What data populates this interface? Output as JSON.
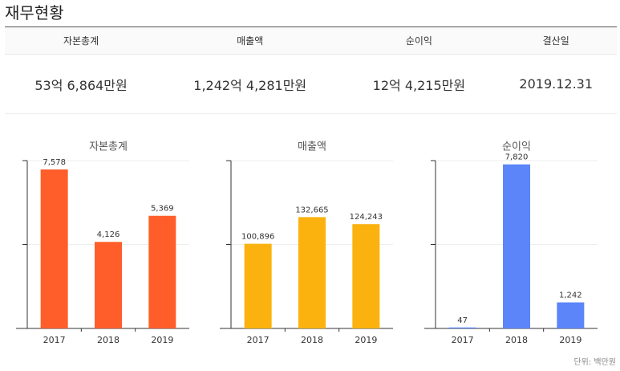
{
  "header": {
    "title": "재무현황"
  },
  "table": {
    "headers": [
      "자본총계",
      "매출액",
      "순이익",
      "결산일"
    ],
    "rows": [
      [
        "53억 6,864만원",
        "1,242억 4,281만원",
        "12억 4,215만원",
        "2019.12.31"
      ]
    ]
  },
  "chart_data": [
    {
      "type": "bar",
      "title": "자본총계",
      "categories": [
        "2017",
        "2018",
        "2019"
      ],
      "values": [
        7578,
        4126,
        5369
      ],
      "value_labels": [
        "7,578",
        "4,126",
        "5,369"
      ],
      "color": "#ff5e2b",
      "ylim": [
        0,
        8000
      ],
      "yticks": [
        0,
        4000,
        8000
      ],
      "grid": true
    },
    {
      "type": "bar",
      "title": "매출액",
      "categories": [
        "2017",
        "2018",
        "2019"
      ],
      "values": [
        100896,
        132665,
        124243
      ],
      "value_labels": [
        "100,896",
        "132,665",
        "124,243"
      ],
      "color": "#fbb20e",
      "ylim": [
        0,
        200000
      ],
      "yticks": [
        0,
        100000,
        200000
      ],
      "grid": true
    },
    {
      "type": "bar",
      "title": "순이익",
      "categories": [
        "2017",
        "2018",
        "2019"
      ],
      "values": [
        47,
        7820,
        1242
      ],
      "value_labels": [
        "47",
        "7,820",
        "1,242"
      ],
      "color": "#5b85f8",
      "ylim": [
        0,
        8000
      ],
      "yticks": [
        0,
        4000,
        8000
      ],
      "grid": true
    }
  ],
  "note": "단위: 백만원"
}
